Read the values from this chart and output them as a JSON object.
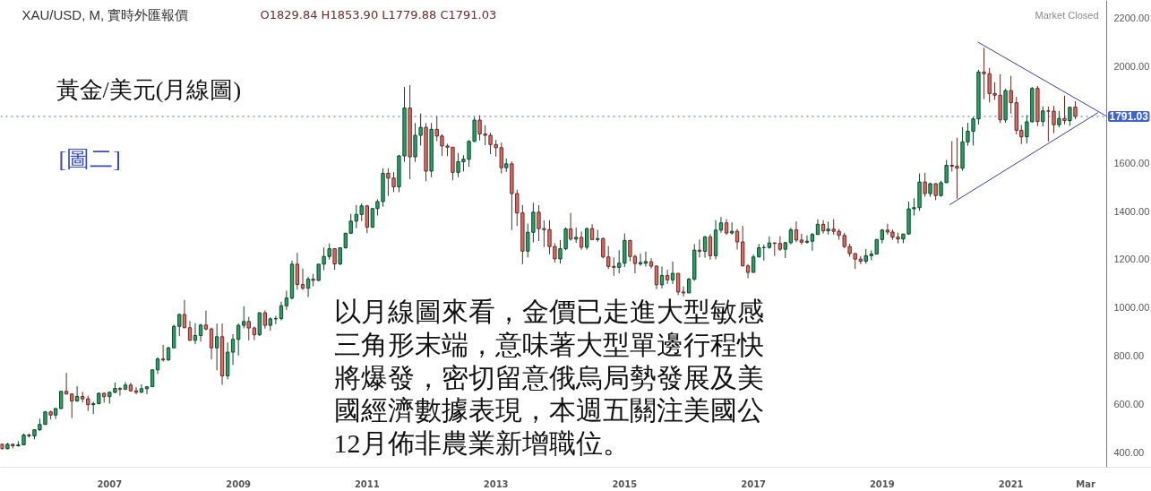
{
  "chart_data": {
    "type": "candlestick",
    "title": "XAU/USD, M, 實時外匯報價",
    "subtitle": "O1829.84  H1853.90  L1779.88  C1791.03",
    "x": [
      "2005-05",
      "2005-06",
      "2005-07",
      "2005-08",
      "2005-09",
      "2005-10",
      "2005-11",
      "2005-12",
      "2006-01",
      "2006-02",
      "2006-03",
      "2006-04",
      "2006-05",
      "2006-06",
      "2006-07",
      "2006-08",
      "2006-09",
      "2006-10",
      "2006-11",
      "2006-12",
      "2007-01",
      "2007-02",
      "2007-03",
      "2007-04",
      "2007-05",
      "2007-06",
      "2007-07",
      "2007-08",
      "2007-09",
      "2007-10",
      "2007-11",
      "2007-12",
      "2008-01",
      "2008-02",
      "2008-03",
      "2008-04",
      "2008-05",
      "2008-06",
      "2008-07",
      "2008-08",
      "2008-09",
      "2008-10",
      "2008-11",
      "2008-12",
      "2009-01",
      "2009-02",
      "2009-03",
      "2009-04",
      "2009-05",
      "2009-06",
      "2009-07",
      "2009-08",
      "2009-09",
      "2009-10",
      "2009-11",
      "2009-12",
      "2010-01",
      "2010-02",
      "2010-03",
      "2010-04",
      "2010-05",
      "2010-06",
      "2010-07",
      "2010-08",
      "2010-09",
      "2010-10",
      "2010-11",
      "2010-12",
      "2011-01",
      "2011-02",
      "2011-03",
      "2011-04",
      "2011-05",
      "2011-06",
      "2011-07",
      "2011-08",
      "2011-09",
      "2011-10",
      "2011-11",
      "2011-12",
      "2012-01",
      "2012-02",
      "2012-03",
      "2012-04",
      "2012-05",
      "2012-06",
      "2012-07",
      "2012-08",
      "2012-09",
      "2012-10",
      "2012-11",
      "2012-12",
      "2013-01",
      "2013-02",
      "2013-03",
      "2013-04",
      "2013-05",
      "2013-06",
      "2013-07",
      "2013-08",
      "2013-09",
      "2013-10",
      "2013-11",
      "2013-12",
      "2014-01",
      "2014-02",
      "2014-03",
      "2014-04",
      "2014-05",
      "2014-06",
      "2014-07",
      "2014-08",
      "2014-09",
      "2014-10",
      "2014-11",
      "2014-12",
      "2015-01",
      "2015-02",
      "2015-03",
      "2015-04",
      "2015-05",
      "2015-06",
      "2015-07",
      "2015-08",
      "2015-09",
      "2015-10",
      "2015-11",
      "2015-12",
      "2016-01",
      "2016-02",
      "2016-03",
      "2016-04",
      "2016-05",
      "2016-06",
      "2016-07",
      "2016-08",
      "2016-09",
      "2016-10",
      "2016-11",
      "2016-12",
      "2017-01",
      "2017-02",
      "2017-03",
      "2017-04",
      "2017-05",
      "2017-06",
      "2017-07",
      "2017-08",
      "2017-09",
      "2017-10",
      "2017-11",
      "2017-12",
      "2018-01",
      "2018-02",
      "2018-03",
      "2018-04",
      "2018-05",
      "2018-06",
      "2018-07",
      "2018-08",
      "2018-09",
      "2018-10",
      "2018-11",
      "2018-12",
      "2019-01",
      "2019-02",
      "2019-03",
      "2019-04",
      "2019-05",
      "2019-06",
      "2019-07",
      "2019-08",
      "2019-09",
      "2019-10",
      "2019-11",
      "2019-12",
      "2020-01",
      "2020-02",
      "2020-03",
      "2020-04",
      "2020-05",
      "2020-06",
      "2020-07",
      "2020-08",
      "2020-09",
      "2020-10",
      "2020-11",
      "2020-12",
      "2021-01",
      "2021-02",
      "2021-03",
      "2021-04",
      "2021-05",
      "2021-06",
      "2021-07",
      "2021-08",
      "2021-09",
      "2021-10",
      "2021-11",
      "2021-12",
      "2022-01"
    ],
    "ohlc": [
      [
        435,
        437,
        414,
        417
      ],
      [
        417,
        441,
        414,
        435
      ],
      [
        435,
        438,
        418,
        429
      ],
      [
        429,
        448,
        425,
        433
      ],
      [
        433,
        479,
        432,
        473
      ],
      [
        473,
        479,
        463,
        470
      ],
      [
        470,
        497,
        456,
        495
      ],
      [
        495,
        541,
        490,
        517
      ],
      [
        517,
        572,
        516,
        569
      ],
      [
        569,
        574,
        538,
        556
      ],
      [
        556,
        585,
        540,
        583
      ],
      [
        583,
        654,
        581,
        654
      ],
      [
        654,
        730,
        641,
        643
      ],
      [
        643,
        645,
        543,
        614
      ],
      [
        614,
        675,
        611,
        633
      ],
      [
        633,
        652,
        608,
        623
      ],
      [
        623,
        636,
        573,
        599
      ],
      [
        599,
        612,
        560,
        603
      ],
      [
        603,
        649,
        600,
        646
      ],
      [
        646,
        649,
        607,
        632
      ],
      [
        632,
        654,
        603,
        650
      ],
      [
        650,
        690,
        646,
        666
      ],
      [
        666,
        672,
        636,
        662
      ],
      [
        662,
        692,
        661,
        680
      ],
      [
        680,
        690,
        654,
        656
      ],
      [
        656,
        671,
        642,
        650
      ],
      [
        650,
        683,
        648,
        665
      ],
      [
        665,
        675,
        642,
        673
      ],
      [
        673,
        745,
        672,
        743
      ],
      [
        743,
        795,
        726,
        788
      ],
      [
        788,
        846,
        777,
        784
      ],
      [
        784,
        838,
        780,
        834
      ],
      [
        834,
        930,
        834,
        923
      ],
      [
        923,
        975,
        883,
        972
      ],
      [
        972,
        1032,
        917,
        917
      ],
      [
        917,
        945,
        863,
        865
      ],
      [
        865,
        936,
        849,
        885
      ],
      [
        885,
        933,
        860,
        928
      ],
      [
        928,
        988,
        906,
        912
      ],
      [
        912,
        918,
        786,
        834
      ],
      [
        834,
        934,
        741,
        880
      ],
      [
        880,
        935,
        681,
        718
      ],
      [
        718,
        856,
        704,
        816
      ],
      [
        816,
        890,
        763,
        869
      ],
      [
        869,
        935,
        802,
        927
      ],
      [
        927,
        1006,
        915,
        943
      ],
      [
        943,
        962,
        865,
        916
      ],
      [
        916,
        922,
        866,
        888
      ],
      [
        888,
        981,
        883,
        979
      ],
      [
        979,
        989,
        913,
        927
      ],
      [
        927,
        960,
        905,
        954
      ],
      [
        954,
        966,
        932,
        955
      ],
      [
        955,
        1025,
        948,
        1008
      ],
      [
        1008,
        1070,
        991,
        1040
      ],
      [
        1040,
        1195,
        1034,
        1180
      ],
      [
        1180,
        1227,
        1075,
        1096
      ],
      [
        1096,
        1162,
        1073,
        1081
      ],
      [
        1081,
        1128,
        1044,
        1118
      ],
      [
        1118,
        1140,
        1088,
        1113
      ],
      [
        1113,
        1180,
        1110,
        1180
      ],
      [
        1180,
        1249,
        1155,
        1212
      ],
      [
        1212,
        1266,
        1199,
        1244
      ],
      [
        1244,
        1244,
        1157,
        1181
      ],
      [
        1181,
        1250,
        1176,
        1248
      ],
      [
        1248,
        1310,
        1244,
        1308
      ],
      [
        1308,
        1388,
        1308,
        1358
      ],
      [
        1358,
        1425,
        1329,
        1386
      ],
      [
        1386,
        1431,
        1358,
        1421
      ],
      [
        1421,
        1425,
        1308,
        1333
      ],
      [
        1333,
        1412,
        1330,
        1410
      ],
      [
        1410,
        1448,
        1381,
        1439
      ],
      [
        1439,
        1577,
        1418,
        1556
      ],
      [
        1556,
        1577,
        1462,
        1536
      ],
      [
        1536,
        1561,
        1478,
        1500
      ],
      [
        1500,
        1632,
        1478,
        1628
      ],
      [
        1628,
        1913,
        1603,
        1826
      ],
      [
        1826,
        1921,
        1532,
        1624
      ],
      [
        1624,
        1764,
        1603,
        1713
      ],
      [
        1713,
        1803,
        1671,
        1746
      ],
      [
        1746,
        1764,
        1523,
        1565
      ],
      [
        1565,
        1764,
        1540,
        1738
      ],
      [
        1738,
        1791,
        1689,
        1710
      ],
      [
        1710,
        1718,
        1628,
        1669
      ],
      [
        1669,
        1678,
        1627,
        1664
      ],
      [
        1664,
        1665,
        1527,
        1560
      ],
      [
        1560,
        1640,
        1540,
        1604
      ],
      [
        1604,
        1631,
        1564,
        1614
      ],
      [
        1614,
        1693,
        1583,
        1688
      ],
      [
        1688,
        1790,
        1686,
        1776
      ],
      [
        1776,
        1796,
        1692,
        1719
      ],
      [
        1719,
        1755,
        1672,
        1713
      ],
      [
        1713,
        1724,
        1635,
        1675
      ],
      [
        1675,
        1694,
        1625,
        1662
      ],
      [
        1662,
        1683,
        1555,
        1579
      ],
      [
        1579,
        1617,
        1562,
        1595
      ],
      [
        1595,
        1605,
        1321,
        1472
      ],
      [
        1472,
        1488,
        1338,
        1392
      ],
      [
        1392,
        1424,
        1180,
        1234
      ],
      [
        1234,
        1348,
        1208,
        1312
      ],
      [
        1312,
        1434,
        1270,
        1395
      ],
      [
        1395,
        1424,
        1276,
        1327
      ],
      [
        1327,
        1361,
        1251,
        1323
      ],
      [
        1323,
        1362,
        1221,
        1253
      ],
      [
        1253,
        1267,
        1187,
        1202
      ],
      [
        1202,
        1280,
        1182,
        1244
      ],
      [
        1244,
        1332,
        1238,
        1326
      ],
      [
        1326,
        1392,
        1277,
        1284
      ],
      [
        1284,
        1331,
        1268,
        1291
      ],
      [
        1291,
        1315,
        1240,
        1250
      ],
      [
        1250,
        1332,
        1240,
        1327
      ],
      [
        1327,
        1345,
        1280,
        1282
      ],
      [
        1282,
        1322,
        1273,
        1286
      ],
      [
        1286,
        1290,
        1204,
        1210
      ],
      [
        1210,
        1255,
        1160,
        1171
      ],
      [
        1171,
        1208,
        1132,
        1167
      ],
      [
        1167,
        1238,
        1142,
        1184
      ],
      [
        1184,
        1307,
        1168,
        1278
      ],
      [
        1278,
        1281,
        1192,
        1212
      ],
      [
        1212,
        1220,
        1142,
        1183
      ],
      [
        1181,
        1224,
        1173,
        1187
      ],
      [
        1184,
        1232,
        1170,
        1191
      ],
      [
        1190,
        1205,
        1162,
        1172
      ],
      [
        1172,
        1175,
        1077,
        1095
      ],
      [
        1095,
        1170,
        1080,
        1133
      ],
      [
        1133,
        1157,
        1098,
        1115
      ],
      [
        1115,
        1191,
        1098,
        1142
      ],
      [
        1142,
        1143,
        1052,
        1065
      ],
      [
        1065,
        1088,
        1046,
        1061
      ],
      [
        1061,
        1123,
        1061,
        1118
      ],
      [
        1118,
        1263,
        1111,
        1238
      ],
      [
        1238,
        1282,
        1208,
        1233
      ],
      [
        1233,
        1297,
        1207,
        1293
      ],
      [
        1293,
        1304,
        1199,
        1215
      ],
      [
        1215,
        1362,
        1200,
        1321
      ],
      [
        1321,
        1375,
        1310,
        1351
      ],
      [
        1351,
        1367,
        1301,
        1309
      ],
      [
        1309,
        1353,
        1302,
        1316
      ],
      [
        1316,
        1326,
        1241,
        1272
      ],
      [
        1272,
        1338,
        1171,
        1173
      ],
      [
        1173,
        1180,
        1122,
        1146
      ],
      [
        1146,
        1220,
        1146,
        1210
      ],
      [
        1210,
        1264,
        1208,
        1248
      ],
      [
        1248,
        1261,
        1195,
        1249
      ],
      [
        1249,
        1295,
        1244,
        1268
      ],
      [
        1268,
        1270,
        1214,
        1266
      ],
      [
        1266,
        1296,
        1235,
        1242
      ],
      [
        1242,
        1273,
        1205,
        1269
      ],
      [
        1269,
        1331,
        1262,
        1322
      ],
      [
        1322,
        1357,
        1271,
        1280
      ],
      [
        1280,
        1306,
        1261,
        1271
      ],
      [
        1271,
        1299,
        1265,
        1275
      ],
      [
        1275,
        1309,
        1236,
        1303
      ],
      [
        1303,
        1366,
        1302,
        1345
      ],
      [
        1345,
        1362,
        1307,
        1318
      ],
      [
        1318,
        1356,
        1303,
        1325
      ],
      [
        1325,
        1366,
        1302,
        1316
      ],
      [
        1316,
        1326,
        1281,
        1299
      ],
      [
        1299,
        1310,
        1246,
        1253
      ],
      [
        1253,
        1265,
        1211,
        1224
      ],
      [
        1224,
        1225,
        1160,
        1201
      ],
      [
        1201,
        1214,
        1180,
        1192
      ],
      [
        1192,
        1243,
        1182,
        1215
      ],
      [
        1215,
        1237,
        1196,
        1222
      ],
      [
        1222,
        1284,
        1222,
        1282
      ],
      [
        1282,
        1326,
        1266,
        1321
      ],
      [
        1321,
        1347,
        1302,
        1313
      ],
      [
        1313,
        1324,
        1281,
        1292
      ],
      [
        1292,
        1310,
        1266,
        1284
      ],
      [
        1284,
        1306,
        1267,
        1305
      ],
      [
        1305,
        1439,
        1302,
        1409
      ],
      [
        1409,
        1453,
        1381,
        1414
      ],
      [
        1414,
        1555,
        1401,
        1520
      ],
      [
        1520,
        1557,
        1459,
        1472
      ],
      [
        1472,
        1517,
        1459,
        1513
      ],
      [
        1513,
        1515,
        1445,
        1464
      ],
      [
        1464,
        1525,
        1459,
        1517
      ],
      [
        1517,
        1611,
        1517,
        1589
      ],
      [
        1589,
        1689,
        1563,
        1585
      ],
      [
        1585,
        1703,
        1451,
        1577
      ],
      [
        1577,
        1747,
        1567,
        1686
      ],
      [
        1686,
        1765,
        1670,
        1730
      ],
      [
        1730,
        1789,
        1671,
        1781
      ],
      [
        1781,
        1984,
        1758,
        1975
      ],
      [
        1975,
        2075,
        1863,
        1968
      ],
      [
        1968,
        1992,
        1849,
        1886
      ],
      [
        1886,
        1933,
        1860,
        1879
      ],
      [
        1879,
        1966,
        1764,
        1777
      ],
      [
        1777,
        1906,
        1765,
        1898
      ],
      [
        1898,
        1959,
        1803,
        1848
      ],
      [
        1848,
        1872,
        1717,
        1734
      ],
      [
        1734,
        1756,
        1677,
        1707
      ],
      [
        1707,
        1797,
        1679,
        1769
      ],
      [
        1769,
        1913,
        1766,
        1907
      ],
      [
        1907,
        1917,
        1751,
        1770
      ],
      [
        1770,
        1833,
        1750,
        1814
      ],
      [
        1814,
        1832,
        1688,
        1813
      ],
      [
        1813,
        1835,
        1722,
        1757
      ],
      [
        1757,
        1814,
        1746,
        1783
      ],
      [
        1783,
        1877,
        1759,
        1774
      ],
      [
        1774,
        1831,
        1753,
        1829
      ],
      [
        1829.84,
        1853.9,
        1779.88,
        1791.03
      ]
    ],
    "colors": [
      "#e8675f",
      "#23a565",
      "#e8675f",
      "#23a565",
      "#23a565",
      "#e8675f",
      "#23a565",
      "#23a565",
      "#23a565",
      "#e8675f",
      "#23a565",
      "#23a565",
      "#e8675f",
      "#e8675f",
      "#23a565",
      "#e8675f",
      "#e8675f",
      "#23a565",
      "#23a565",
      "#e8675f",
      "#23a565",
      "#23a565",
      "#e8675f",
      "#23a565",
      "#e8675f",
      "#e8675f",
      "#23a565",
      "#23a565",
      "#23a565",
      "#23a565",
      "#e8675f",
      "#23a565",
      "#23a565",
      "#23a565",
      "#e8675f",
      "#e8675f",
      "#23a565",
      "#23a565",
      "#e8675f",
      "#e8675f",
      "#23a565",
      "#e8675f",
      "#23a565",
      "#23a565",
      "#23a565",
      "#23a565",
      "#e8675f",
      "#e8675f",
      "#23a565",
      "#e8675f",
      "#23a565",
      "#23a565",
      "#23a565",
      "#23a565",
      "#23a565",
      "#e8675f",
      "#e8675f",
      "#23a565",
      "#e8675f",
      "#23a565",
      "#23a565",
      "#23a565",
      "#e8675f",
      "#23a565",
      "#23a565",
      "#23a565",
      "#23a565",
      "#23a565",
      "#e8675f",
      "#23a565",
      "#23a565",
      "#23a565",
      "#e8675f",
      "#e8675f",
      "#23a565",
      "#23a565",
      "#e8675f",
      "#23a565",
      "#23a565",
      "#e8675f",
      "#23a565",
      "#e8675f",
      "#e8675f",
      "#e8675f",
      "#e8675f",
      "#23a565",
      "#23a565",
      "#23a565",
      "#23a565",
      "#e8675f",
      "#e8675f",
      "#e8675f",
      "#e8675f",
      "#e8675f",
      "#23a565",
      "#e8675f",
      "#e8675f",
      "#e8675f",
      "#23a565",
      "#23a565",
      "#e8675f",
      "#e8675f",
      "#e8675f",
      "#e8675f",
      "#23a565",
      "#23a565",
      "#e8675f",
      "#23a565",
      "#e8675f",
      "#23a565",
      "#e8675f",
      "#23a565",
      "#e8675f",
      "#e8675f",
      "#e8675f",
      "#23a565",
      "#23a565",
      "#e8675f",
      "#e8675f",
      "#23a565",
      "#23a565",
      "#e8675f",
      "#e8675f",
      "#23a565",
      "#e8675f",
      "#23a565",
      "#e8675f",
      "#e8675f",
      "#23a565",
      "#23a565",
      "#e8675f",
      "#23a565",
      "#e8675f",
      "#23a565",
      "#23a565",
      "#e8675f",
      "#23a565",
      "#e8675f",
      "#e8675f",
      "#e8675f",
      "#23a565",
      "#23a565",
      "#23a565",
      "#23a565",
      "#e8675f",
      "#e8675f",
      "#23a565",
      "#23a565",
      "#e8675f",
      "#e8675f",
      "#23a565",
      "#23a565",
      "#23a565",
      "#e8675f",
      "#23a565",
      "#e8675f",
      "#e8675f",
      "#e8675f",
      "#e8675f",
      "#e8675f",
      "#e8675f",
      "#23a565",
      "#23a565",
      "#23a565",
      "#23a565",
      "#e8675f",
      "#e8675f",
      "#e8675f",
      "#23a565",
      "#23a565",
      "#23a565",
      "#23a565",
      "#e8675f",
      "#23a565",
      "#e8675f",
      "#23a565",
      "#23a565",
      "#e8675f",
      "#e8675f",
      "#23a565",
      "#23a565",
      "#23a565",
      "#23a565",
      "#e8675f",
      "#e8675f",
      "#e8675f",
      "#e8675f",
      "#23a565",
      "#e8675f",
      "#e8675f",
      "#e8675f",
      "#23a565",
      "#23a565",
      "#e8675f",
      "#23a565",
      "#e8675f",
      "#e8675f",
      "#23a565",
      "#e8675f",
      "#23a565",
      "#e8675f"
    ],
    "series": [
      {
        "type": "line",
        "x": [
          "2020-06-27",
          "2022-06-25"
        ],
        "values": [
          2099,
          1793
        ],
        "color": "#3b3d9c"
      },
      {
        "type": "line",
        "x": [
          "2020-01-19",
          "2022-05-10"
        ],
        "values": [
          1426,
          1807
        ],
        "color": "#3b3d9c"
      }
    ],
    "xlim": [
      "2005-04-22",
      "2023-03-09"
    ],
    "ylim": [
      340,
      2271
    ],
    "xticks": [
      {
        "value": "2007",
        "label": "2007"
      },
      {
        "value": "2009",
        "label": "2009"
      },
      {
        "value": "2011",
        "label": "2011"
      },
      {
        "value": "2013",
        "label": "2013"
      },
      {
        "value": "2015",
        "label": "2015"
      },
      {
        "value": "2017",
        "label": "2017"
      },
      {
        "value": "2019",
        "label": "2019"
      },
      {
        "value": "2021",
        "label": "2021"
      },
      {
        "value": "2022-03",
        "label": "Mar"
      }
    ],
    "yticks": [
      {
        "value": 400,
        "label": "400.00"
      },
      {
        "value": 600,
        "label": "600.00"
      },
      {
        "value": 800,
        "label": "800.00"
      },
      {
        "value": 1000,
        "label": "1000.00"
      },
      {
        "value": 1200,
        "label": "1200.00"
      },
      {
        "value": 1400,
        "label": "1400.00"
      },
      {
        "value": 1600,
        "label": "1600.00"
      },
      {
        "value": 2000,
        "label": "2000.00"
      },
      {
        "value": 2200,
        "label": "2200.00"
      }
    ],
    "ref_lines": [
      {
        "axis": "y",
        "value": 1791.03,
        "label": "1791.03",
        "color": "#3f63d6",
        "line_style": "dotted"
      }
    ],
    "grid": false,
    "annotations": [
      "Market Closed",
      "黃金/美元(月線圖)",
      "[圖二]",
      "以月線圖來看，金價已走進大型敏感三角形末端，意味著大型單邊行程快將爆發，密切留意俄烏局勢發展及美國經濟數據表現，本週五關注美國公12月佈非農業新增職位。"
    ]
  }
}
